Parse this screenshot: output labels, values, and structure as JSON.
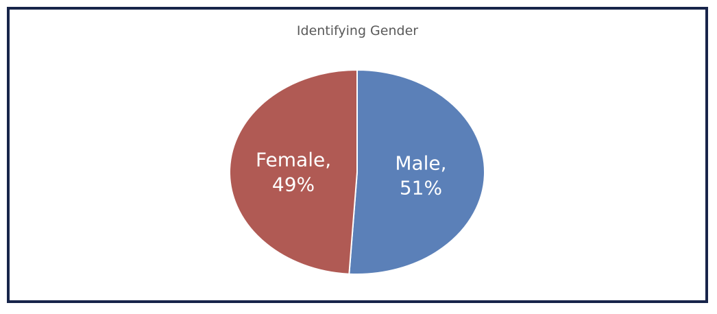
{
  "chart_data": {
    "type": "pie",
    "title": "Identifying Gender",
    "slices": [
      {
        "category": "Male",
        "value": 51,
        "label_line1": "Male,",
        "label_line2": "51%",
        "color": "#5b80b8"
      },
      {
        "category": "Female",
        "value": 49,
        "label_line1": "Female,",
        "label_line2": "49%",
        "color": "#b05a54"
      }
    ]
  }
}
